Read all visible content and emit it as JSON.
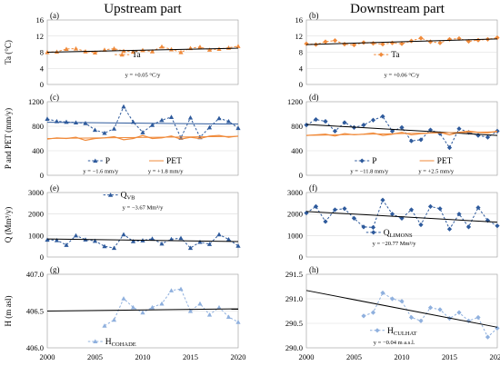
{
  "column_titles": [
    "Upstream part",
    "Downstream part"
  ],
  "x_ticks": [
    "2000",
    "2005",
    "2010",
    "2015",
    "2020"
  ],
  "chart_data": [
    {
      "id": "a",
      "panel_label": "(a)",
      "type": "line",
      "col": 0,
      "row": 0,
      "ylabel": "Ta (°C)",
      "ylim": [
        0,
        16
      ],
      "yticks": [
        "0",
        "4",
        "8",
        "12",
        "16"
      ],
      "x": [
        2000,
        2001,
        2002,
        2003,
        2004,
        2005,
        2006,
        2007,
        2008,
        2009,
        2010,
        2011,
        2012,
        2013,
        2014,
        2015,
        2016,
        2017,
        2018,
        2019,
        2020
      ],
      "series": [
        {
          "name": "Ta",
          "color": "#f08a3a",
          "marker": "triangle",
          "dashed": true,
          "values": [
            8.0,
            8.1,
            8.8,
            8.9,
            8.2,
            7.9,
            8.6,
            8.9,
            8.3,
            8.1,
            8.5,
            8.2,
            9.4,
            8.7,
            8.0,
            9.0,
            9.3,
            8.6,
            8.8,
            9.1,
            9.5
          ]
        }
      ],
      "trends": [
        {
          "x": [
            2000,
            2020
          ],
          "y": [
            8.0,
            9.0
          ],
          "color": "#000000"
        }
      ],
      "legend": [
        {
          "series": 0,
          "label": "Ta"
        }
      ],
      "equations": [
        "y = +0.05 °C/y"
      ]
    },
    {
      "id": "b",
      "panel_label": "(b)",
      "type": "line",
      "col": 1,
      "row": 0,
      "ylabel": "",
      "ylim": [
        0,
        16
      ],
      "yticks": [
        "0",
        "4",
        "8",
        "12",
        "16"
      ],
      "x": [
        2000,
        2001,
        2002,
        2003,
        2004,
        2005,
        2006,
        2007,
        2008,
        2009,
        2010,
        2011,
        2012,
        2013,
        2014,
        2015,
        2016,
        2017,
        2018,
        2019,
        2020
      ],
      "series": [
        {
          "name": "Ta",
          "color": "#f08a3a",
          "marker": "diamond",
          "dashed": true,
          "values": [
            10.1,
            9.9,
            10.6,
            10.9,
            10.0,
            9.8,
            10.4,
            10.2,
            10.0,
            10.3,
            10.1,
            10.8,
            11.5,
            10.6,
            10.3,
            11.2,
            11.4,
            10.7,
            11.0,
            11.2,
            11.6
          ]
        }
      ],
      "trends": [
        {
          "x": [
            2000,
            2020
          ],
          "y": [
            9.9,
            11.3
          ],
          "color": "#000000"
        }
      ],
      "legend": [
        {
          "series": 0,
          "label": "Ta"
        }
      ],
      "equations": [
        "y = +0.06 °C/y"
      ]
    },
    {
      "id": "c",
      "panel_label": "(c)",
      "type": "line",
      "col": 0,
      "row": 1,
      "ylabel": "P and PET (mm/y)",
      "ylim": [
        0,
        1200
      ],
      "yticks": [
        "0",
        "400",
        "800",
        "1200"
      ],
      "x": [
        2000,
        2001,
        2002,
        2003,
        2004,
        2005,
        2006,
        2007,
        2008,
        2009,
        2010,
        2011,
        2012,
        2013,
        2014,
        2015,
        2016,
        2017,
        2018,
        2019,
        2020
      ],
      "series": [
        {
          "name": "P",
          "color": "#2e5a9c",
          "marker": "triangle",
          "dashed": true,
          "values": [
            920,
            880,
            870,
            860,
            850,
            740,
            690,
            760,
            1120,
            870,
            700,
            820,
            900,
            950,
            610,
            940,
            620,
            780,
            930,
            880,
            770
          ]
        },
        {
          "name": "PET",
          "color": "#f08a3a",
          "marker": "none",
          "dashed": false,
          "values": [
            590,
            610,
            600,
            620,
            570,
            600,
            610,
            630,
            580,
            600,
            650,
            600,
            610,
            640,
            590,
            620,
            600,
            640,
            650,
            620,
            640
          ]
        }
      ],
      "trends": [
        {
          "x": [
            2000,
            2020
          ],
          "y": [
            865,
            835
          ],
          "color": "#2e5a9c"
        },
        {
          "x": [
            2000,
            2020
          ],
          "y": [
            600,
            635
          ],
          "color": "#f08a3a"
        }
      ],
      "legend": [
        {
          "series": 0,
          "label": "P"
        },
        {
          "series": 1,
          "label": "PET"
        }
      ],
      "equations": [
        "y = −1.6 mm/y",
        "y = +1.8 mm/y"
      ]
    },
    {
      "id": "d",
      "panel_label": "(d)",
      "type": "line",
      "col": 1,
      "row": 1,
      "ylabel": "",
      "ylim": [
        0,
        1200
      ],
      "yticks": [
        "0",
        "400",
        "800",
        "1200"
      ],
      "x": [
        2000,
        2001,
        2002,
        2003,
        2004,
        2005,
        2006,
        2007,
        2008,
        2009,
        2010,
        2011,
        2012,
        2013,
        2014,
        2015,
        2016,
        2017,
        2018,
        2019,
        2020
      ],
      "series": [
        {
          "name": "P",
          "color": "#2e5a9c",
          "marker": "diamond",
          "dashed": true,
          "values": [
            820,
            910,
            880,
            720,
            860,
            780,
            820,
            900,
            960,
            720,
            780,
            560,
            580,
            740,
            680,
            450,
            760,
            700,
            650,
            620,
            720
          ]
        },
        {
          "name": "PET",
          "color": "#f08a3a",
          "marker": "none",
          "dashed": false,
          "values": [
            650,
            660,
            670,
            640,
            680,
            660,
            670,
            690,
            650,
            670,
            700,
            660,
            680,
            690,
            700,
            660,
            700,
            720,
            700,
            690,
            720
          ]
        }
      ],
      "trends": [
        {
          "x": [
            2000,
            2020
          ],
          "y": [
            830,
            650
          ],
          "color": "#000000"
        },
        {
          "x": [
            2000,
            2020
          ],
          "y": [
            650,
            710
          ],
          "color": "#f08a3a"
        }
      ],
      "legend": [
        {
          "series": 0,
          "label": "P"
        },
        {
          "series": 1,
          "label": "PET"
        }
      ],
      "equations": [
        "y = −11.8 mm/y",
        "y = +2.5 mm/y"
      ]
    },
    {
      "id": "e",
      "panel_label": "(e)",
      "type": "line",
      "col": 0,
      "row": 2,
      "ylabel": "Q (Mm³/y)",
      "ylim": [
        0,
        3000
      ],
      "yticks": [
        "0",
        "1000",
        "2000",
        "3000"
      ],
      "x": [
        2000,
        2001,
        2002,
        2003,
        2004,
        2005,
        2006,
        2007,
        2008,
        2009,
        2010,
        2011,
        2012,
        2013,
        2014,
        2015,
        2016,
        2017,
        2018,
        2019,
        2020
      ],
      "series": [
        {
          "name": "QVB",
          "color": "#2e5a9c",
          "marker": "triangle",
          "dashed": true,
          "values": [
            800,
            780,
            560,
            1000,
            810,
            750,
            500,
            420,
            1050,
            730,
            770,
            850,
            620,
            830,
            880,
            420,
            700,
            600,
            1050,
            820,
            520
          ]
        }
      ],
      "trends": [
        {
          "x": [
            2000,
            2020
          ],
          "y": [
            840,
            720
          ],
          "color": "#000000"
        }
      ],
      "legend": [
        {
          "series": 0,
          "label": "Q",
          "sub": "VB"
        }
      ],
      "equations": [
        "y = −3.67 Mm³/y"
      ]
    },
    {
      "id": "f",
      "panel_label": "(f)",
      "type": "line",
      "col": 1,
      "row": 2,
      "ylabel": "",
      "ylim": [
        0,
        3000
      ],
      "yticks": [
        "0",
        "1000",
        "2000",
        "3000"
      ],
      "x": [
        2000,
        2001,
        2002,
        2003,
        2004,
        2005,
        2006,
        2007,
        2008,
        2009,
        2010,
        2011,
        2012,
        2013,
        2014,
        2015,
        2016,
        2017,
        2018,
        2019,
        2020
      ],
      "series": [
        {
          "name": "QLIMONS",
          "color": "#2e5a9c",
          "marker": "diamond",
          "dashed": true,
          "values": [
            2050,
            2350,
            1650,
            2200,
            2250,
            1800,
            1400,
            1380,
            2650,
            2000,
            1800,
            2200,
            1500,
            2350,
            2250,
            1300,
            2000,
            1400,
            2300,
            1700,
            1450
          ]
        }
      ],
      "trends": [
        {
          "x": [
            2000,
            2020
          ],
          "y": [
            2120,
            1620
          ],
          "color": "#000000"
        }
      ],
      "legend": [
        {
          "series": 0,
          "label": "Q",
          "sub": "LIMONS"
        }
      ],
      "equations": [
        "y = −20.77 Mm³/y"
      ]
    },
    {
      "id": "g",
      "panel_label": "(g)",
      "type": "line",
      "col": 0,
      "row": 3,
      "ylabel": "H (m asl)",
      "ylim": [
        406.0,
        407.0
      ],
      "yticks": [
        "406.0",
        "406.5",
        "407.0"
      ],
      "x": [
        2006,
        2007,
        2008,
        2009,
        2010,
        2011,
        2012,
        2013,
        2014,
        2015,
        2016,
        2017,
        2018,
        2019,
        2020
      ],
      "series": [
        {
          "name": "HCOHADE",
          "color": "#8fb0de",
          "marker": "triangle",
          "dashed": true,
          "values": [
            406.3,
            406.38,
            406.67,
            406.55,
            406.48,
            406.55,
            406.6,
            406.78,
            406.8,
            406.5,
            406.6,
            406.45,
            406.55,
            406.42,
            406.35
          ]
        }
      ],
      "trends": [
        {
          "x": [
            2000,
            2020
          ],
          "y": [
            406.5,
            406.53
          ],
          "color": "#000000"
        }
      ],
      "legend": [
        {
          "series": 0,
          "label": "H",
          "sub": "COHADE"
        }
      ],
      "equations": []
    },
    {
      "id": "h",
      "panel_label": "(h)",
      "type": "line",
      "col": 1,
      "row": 3,
      "ylabel": "",
      "ylim": [
        290.0,
        291.5
      ],
      "yticks": [
        "290.0",
        "290.5",
        "291.0",
        "291.5"
      ],
      "x": [
        2006,
        2007,
        2008,
        2009,
        2010,
        2011,
        2012,
        2013,
        2014,
        2015,
        2016,
        2017,
        2018,
        2019,
        2020
      ],
      "series": [
        {
          "name": "HCULHAT",
          "color": "#8fb0de",
          "marker": "diamond",
          "dashed": true,
          "values": [
            290.65,
            290.72,
            291.12,
            291.0,
            290.95,
            290.62,
            290.55,
            290.82,
            290.78,
            290.6,
            290.72,
            290.55,
            290.62,
            290.22,
            290.4
          ]
        }
      ],
      "trends": [
        {
          "x": [
            2000,
            2020
          ],
          "y": [
            291.17,
            290.42
          ],
          "color": "#000000"
        }
      ],
      "legend": [
        {
          "series": 0,
          "label": "H",
          "sub": "CULHAT"
        }
      ],
      "equations": [
        "y = −0.04 m a.s.l."
      ]
    }
  ]
}
